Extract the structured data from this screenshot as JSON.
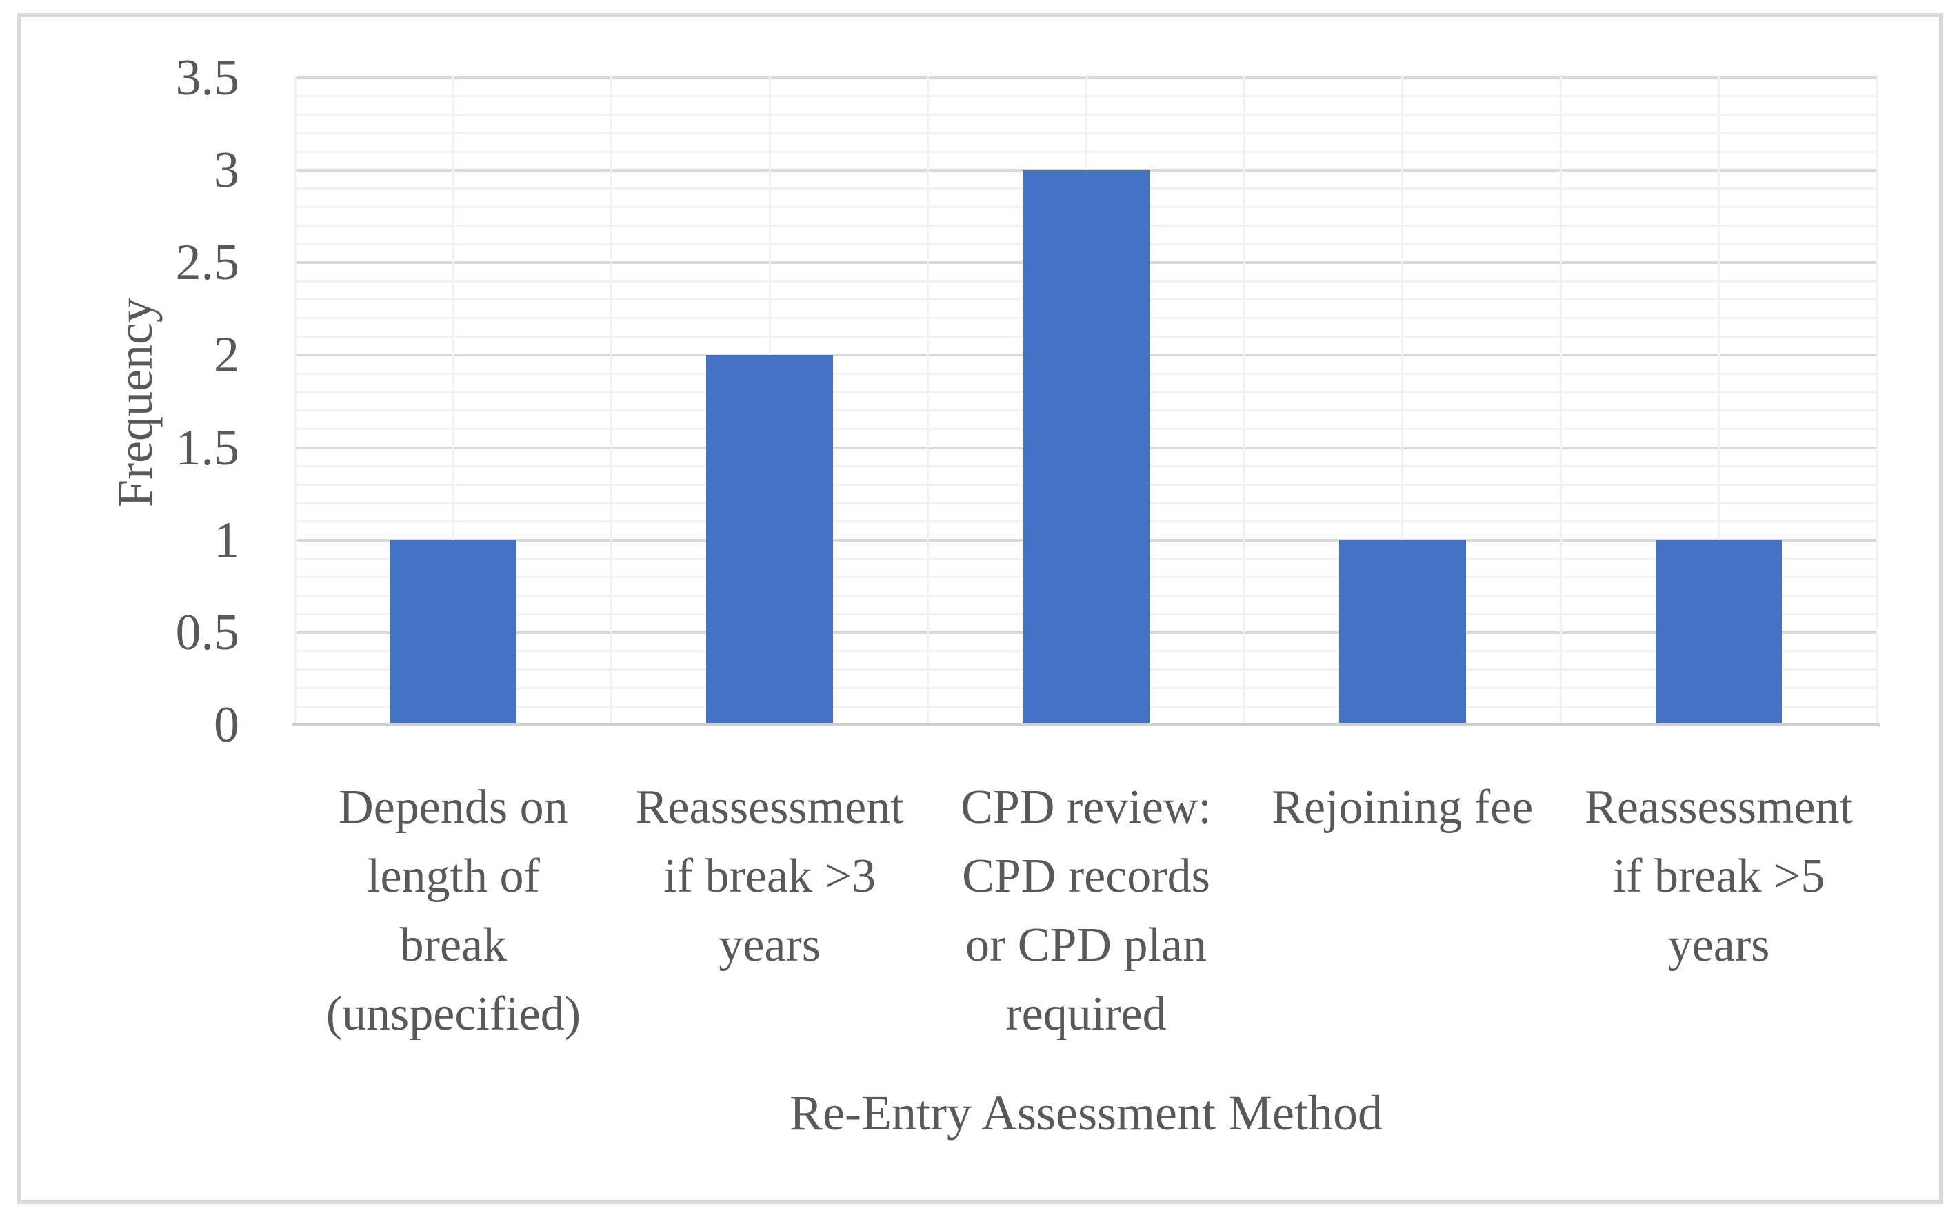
{
  "chart_data": {
    "type": "bar",
    "title": "",
    "xlabel": "Re-Entry Assessment Method",
    "ylabel": "Frequency",
    "categories": [
      "Depends on length of break (unspecified)",
      "Reassessment if break >3 years",
      "CPD review: CPD records or CPD plan required",
      "Rejoining fee",
      "Reassessment if break >5 years"
    ],
    "category_display_lines": [
      "Depends on\nlength of\nbreak\n(unspecified)",
      "Reassessment\nif break >3\nyears",
      "CPD review:\nCPD records\nor CPD plan\nrequired",
      "Rejoining fee",
      "Reassessment\nif break >5\nyears"
    ],
    "values": [
      1,
      2,
      3,
      1,
      1
    ],
    "ylim": [
      0,
      3.5
    ],
    "y_major_step": 0.5,
    "y_minor_step": 0.1,
    "y_ticks": [
      {
        "label": "3.5",
        "value": 3.5
      },
      {
        "label": "3",
        "value": 3.0
      },
      {
        "label": "2.5",
        "value": 2.5
      },
      {
        "label": "2",
        "value": 2.0
      },
      {
        "label": "1.5",
        "value": 1.5
      },
      {
        "label": "1",
        "value": 1.0
      },
      {
        "label": "0.5",
        "value": 0.5
      },
      {
        "label": "0",
        "value": 0.0
      }
    ],
    "grid": {
      "horizontal_major": true,
      "horizontal_minor": true,
      "vertical_minor_half_category": true
    },
    "legend": {
      "visible": false
    },
    "colors": {
      "bar": "#4472C4",
      "text": "#595959",
      "grid_major": "#D9D9D9",
      "grid_minor": "#F2F2F2",
      "axis_line": "#D2D0D0",
      "frame_border": "#D9D9D9",
      "background": "#FFFFFF"
    }
  }
}
